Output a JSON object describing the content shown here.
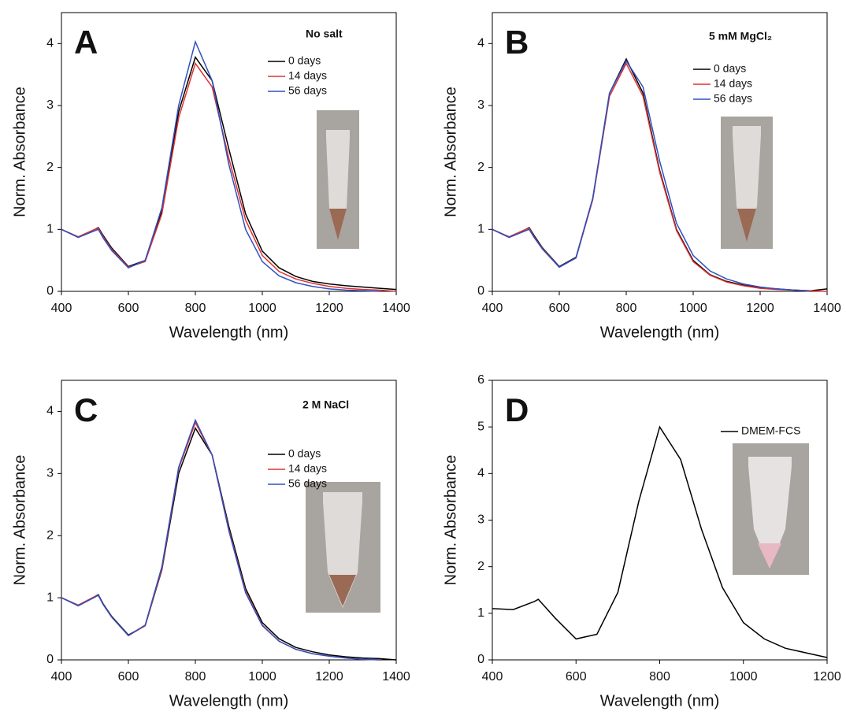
{
  "chart_data": [
    {
      "type": "line",
      "label": "A",
      "annotation": "No salt",
      "x_label": "Wavelength (nm)",
      "y_label": "Norm. Absorbance",
      "x": [
        400,
        450,
        500,
        510,
        525,
        550,
        600,
        650,
        700,
        750,
        800,
        850,
        900,
        950,
        1000,
        1050,
        1100,
        1150,
        1200,
        1250,
        1300,
        1350,
        1400
      ],
      "series": [
        {
          "name": "0 days",
          "color": "#000000",
          "values": [
            1.0,
            0.88,
            1.0,
            1.03,
            0.9,
            0.7,
            0.4,
            0.5,
            1.3,
            2.9,
            3.78,
            3.4,
            2.3,
            1.25,
            0.65,
            0.38,
            0.24,
            0.16,
            0.12,
            0.09,
            0.07,
            0.05,
            0.03
          ]
        },
        {
          "name": "14 days",
          "color": "#e03030",
          "values": [
            1.0,
            0.88,
            1.0,
            1.02,
            0.88,
            0.68,
            0.39,
            0.48,
            1.25,
            2.8,
            3.68,
            3.3,
            2.15,
            1.15,
            0.58,
            0.32,
            0.2,
            0.13,
            0.08,
            0.05,
            0.03,
            0.02,
            0.0
          ]
        },
        {
          "name": "56 days",
          "color": "#3050c0",
          "values": [
            1.0,
            0.87,
            0.98,
            1.0,
            0.86,
            0.66,
            0.38,
            0.5,
            1.35,
            3.0,
            4.03,
            3.4,
            2.05,
            1.0,
            0.48,
            0.25,
            0.14,
            0.08,
            0.04,
            0.02,
            0.01,
            0.0,
            null
          ]
        }
      ],
      "xlim": [
        400,
        1400
      ],
      "ylim": [
        0,
        4.5
      ],
      "xticks": [
        400,
        600,
        800,
        1000,
        1200,
        1400
      ],
      "yticks": [
        0,
        1,
        2,
        3,
        4
      ]
    },
    {
      "type": "line",
      "label": "B",
      "annotation": "5 mM MgCl₂",
      "x_label": "Wavelength (nm)",
      "y_label": "Norm. Absorbance",
      "x": [
        400,
        450,
        500,
        510,
        525,
        550,
        600,
        650,
        700,
        750,
        800,
        850,
        900,
        950,
        1000,
        1050,
        1100,
        1150,
        1200,
        1250,
        1300,
        1350,
        1400
      ],
      "series": [
        {
          "name": "0 days",
          "color": "#000000",
          "values": [
            1.0,
            0.88,
            1.0,
            1.03,
            0.9,
            0.7,
            0.4,
            0.55,
            1.5,
            3.2,
            3.75,
            3.2,
            1.95,
            1.0,
            0.5,
            0.27,
            0.16,
            0.1,
            0.06,
            0.04,
            0.02,
            0.01,
            0.04
          ]
        },
        {
          "name": "14 days",
          "color": "#e03030",
          "values": [
            1.0,
            0.88,
            1.0,
            1.02,
            0.88,
            0.69,
            0.39,
            0.54,
            1.48,
            3.15,
            3.68,
            3.15,
            1.92,
            0.98,
            0.48,
            0.26,
            0.15,
            0.09,
            0.05,
            0.03,
            0.02,
            0.01,
            0.0
          ]
        },
        {
          "name": "56 days",
          "color": "#3050c0",
          "values": [
            1.0,
            0.87,
            0.98,
            1.0,
            0.87,
            0.68,
            0.39,
            0.54,
            1.5,
            3.2,
            3.72,
            3.3,
            2.1,
            1.1,
            0.58,
            0.33,
            0.2,
            0.12,
            0.07,
            0.04,
            0.02,
            0.0,
            null
          ]
        }
      ],
      "xlim": [
        400,
        1400
      ],
      "ylim": [
        0,
        4.5
      ],
      "xticks": [
        400,
        600,
        800,
        1000,
        1200,
        1400
      ],
      "yticks": [
        0,
        1,
        2,
        3,
        4
      ]
    },
    {
      "type": "line",
      "label": "C",
      "annotation": "2 M NaCl",
      "x_label": "Wavelength (nm)",
      "y_label": "Norm. Absorbance",
      "x": [
        400,
        450,
        500,
        510,
        525,
        550,
        600,
        650,
        700,
        750,
        800,
        850,
        900,
        950,
        1000,
        1050,
        1100,
        1150,
        1200,
        1250,
        1300,
        1350,
        1400
      ],
      "series": [
        {
          "name": "0 days",
          "color": "#000000",
          "values": [
            1.0,
            0.88,
            1.02,
            1.05,
            0.9,
            0.7,
            0.4,
            0.55,
            1.45,
            3.0,
            3.73,
            3.3,
            2.15,
            1.15,
            0.6,
            0.34,
            0.2,
            0.13,
            0.08,
            0.05,
            0.03,
            0.02,
            0.0
          ]
        },
        {
          "name": "14 days",
          "color": "#e03030",
          "values": [
            1.0,
            0.88,
            1.02,
            1.04,
            0.89,
            0.69,
            0.39,
            0.55,
            1.47,
            3.08,
            3.82,
            3.3,
            2.1,
            1.1,
            0.56,
            0.3,
            0.17,
            0.1,
            0.06,
            0.03,
            0.01,
            0.0,
            null
          ]
        },
        {
          "name": "56 days",
          "color": "#3050c0",
          "values": [
            1.0,
            0.87,
            1.01,
            1.04,
            0.89,
            0.69,
            0.39,
            0.56,
            1.5,
            3.1,
            3.86,
            3.3,
            2.08,
            1.08,
            0.55,
            0.3,
            0.17,
            0.1,
            0.06,
            0.03,
            0.01,
            0.0,
            null
          ]
        }
      ],
      "xlim": [
        400,
        1400
      ],
      "ylim": [
        0,
        4.5
      ],
      "xticks": [
        400,
        600,
        800,
        1000,
        1200,
        1400
      ],
      "yticks": [
        0,
        1,
        2,
        3,
        4
      ]
    },
    {
      "type": "line",
      "label": "D",
      "x_label": "Wavelength (nm)",
      "y_label": "Norm. Absorbance",
      "x": [
        400,
        450,
        500,
        510,
        525,
        550,
        600,
        650,
        700,
        750,
        800,
        850,
        900,
        950,
        1000,
        1050,
        1100,
        1150,
        1200
      ],
      "series": [
        {
          "name": "DMEM-FCS",
          "color": "#000000",
          "values": [
            1.1,
            1.08,
            1.25,
            1.3,
            1.15,
            0.9,
            0.45,
            0.55,
            1.45,
            3.4,
            5.0,
            4.3,
            2.8,
            1.55,
            0.8,
            0.45,
            0.25,
            0.15,
            0.05
          ]
        }
      ],
      "xlim": [
        400,
        1200
      ],
      "ylim": [
        0,
        6
      ],
      "xticks": [
        400,
        600,
        800,
        1000,
        1200
      ],
      "yticks": [
        0,
        1,
        2,
        3,
        4,
        5,
        6
      ]
    }
  ]
}
